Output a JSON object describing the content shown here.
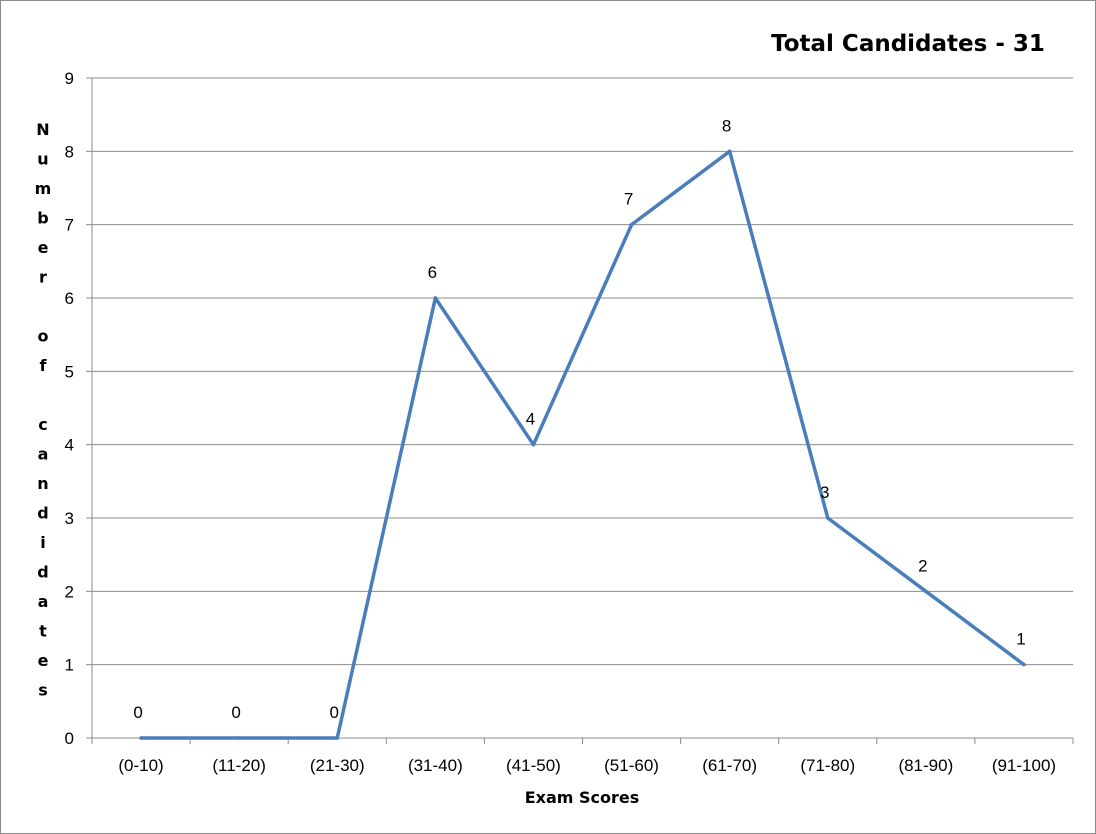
{
  "chart_data": {
    "type": "line",
    "title": "Total Candidates - 31",
    "xlabel": "Exam Scores",
    "ylabel": "Number of candidates",
    "categories": [
      "(0-10)",
      "(11-20)",
      "(21-30)",
      "(31-40)",
      "(41-50)",
      "(51-60)",
      "(61-70)",
      "(71-80)",
      "(81-90)",
      "(91-100)"
    ],
    "series": [
      {
        "values": [
          0,
          0,
          0,
          6,
          4,
          7,
          8,
          3,
          2,
          1
        ]
      }
    ],
    "ylim": [
      0,
      9
    ],
    "yticks": [
      0,
      1,
      2,
      3,
      4,
      5,
      6,
      7,
      8,
      9
    ],
    "grid": true,
    "legend": "none",
    "line_color": "#4a7ebb"
  }
}
